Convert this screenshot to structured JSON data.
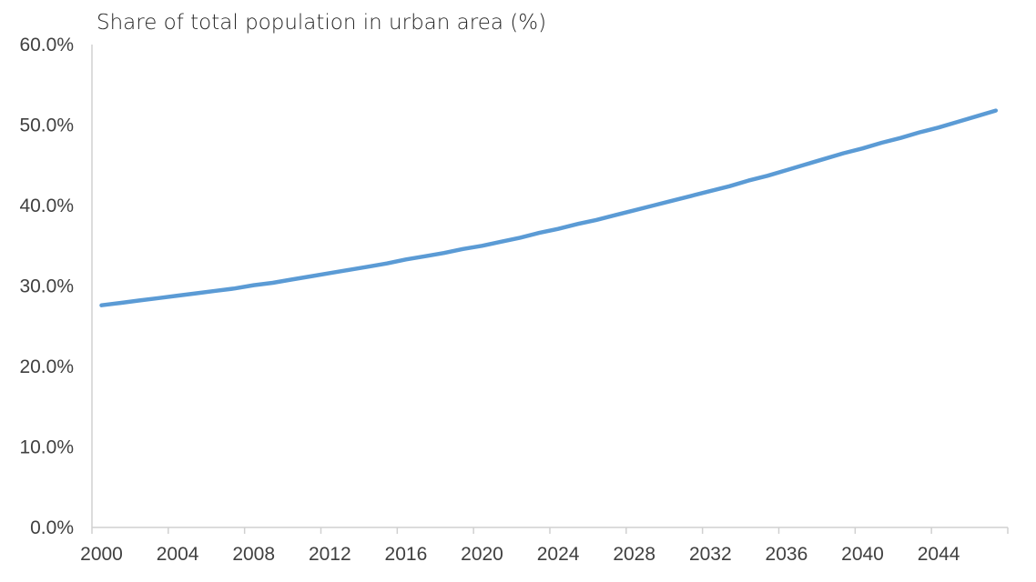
{
  "chart_data": {
    "type": "line",
    "title": "Share of total population in urban area (%)",
    "xlabel": "",
    "ylabel": "",
    "x": [
      2000,
      2001,
      2002,
      2003,
      2004,
      2005,
      2006,
      2007,
      2008,
      2009,
      2010,
      2011,
      2012,
      2013,
      2014,
      2015,
      2016,
      2017,
      2018,
      2019,
      2020,
      2021,
      2022,
      2023,
      2024,
      2025,
      2026,
      2027,
      2028,
      2029,
      2030,
      2031,
      2032,
      2033,
      2034,
      2035,
      2036,
      2037,
      2038,
      2039,
      2040,
      2041,
      2042,
      2043,
      2044,
      2045,
      2046,
      2047
    ],
    "series": [
      {
        "color": "#5b9bd5",
        "values": [
          27.6,
          27.9,
          28.2,
          28.5,
          28.8,
          29.1,
          29.4,
          29.7,
          30.1,
          30.4,
          30.8,
          31.2,
          31.6,
          32.0,
          32.4,
          32.8,
          33.3,
          33.7,
          34.1,
          34.6,
          35.0,
          35.5,
          36.0,
          36.6,
          37.1,
          37.7,
          38.2,
          38.8,
          39.4,
          40.0,
          40.6,
          41.2,
          41.8,
          42.4,
          43.1,
          43.7,
          44.4,
          45.1,
          45.8,
          46.5,
          47.1,
          47.8,
          48.4,
          49.1,
          49.7,
          50.4,
          51.1,
          51.8
        ]
      }
    ],
    "xlim": [
      2000,
      2047
    ],
    "ylim": [
      0,
      60
    ],
    "x_ticks": [
      "2000",
      "2004",
      "2008",
      "2012",
      "2016",
      "2020",
      "2024",
      "2028",
      "2032",
      "2036",
      "2040",
      "2044"
    ],
    "y_ticks": [
      "0.0%",
      "10.0%",
      "20.0%",
      "30.0%",
      "40.0%",
      "50.0%",
      "60.0%"
    ],
    "grid": false,
    "legend": "none"
  }
}
